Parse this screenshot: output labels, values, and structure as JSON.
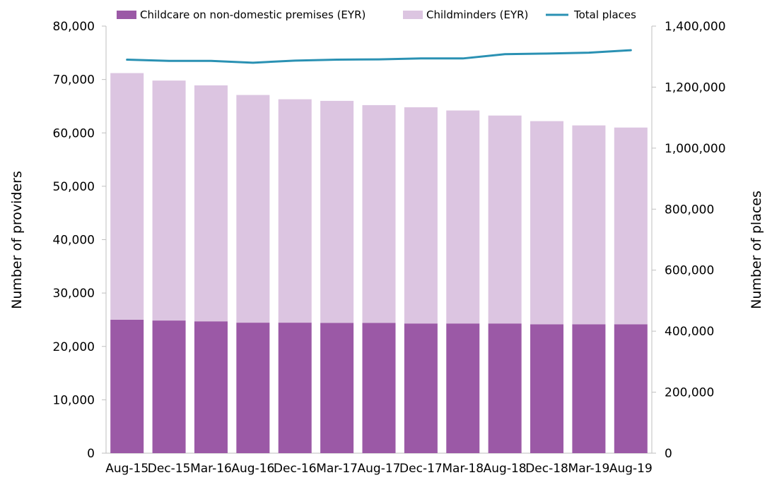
{
  "chart_data": {
    "type": "bar",
    "stacked": true,
    "categories": [
      "Aug-15",
      "Dec-15",
      "Mar-16",
      "Aug-16",
      "Dec-16",
      "Mar-17",
      "Aug-17",
      "Dec-17",
      "Mar-18",
      "Aug-18",
      "Dec-18",
      "Mar-19",
      "Aug-19"
    ],
    "series": [
      {
        "name": "Childcare on non-domestic premises (EYR)",
        "type": "bar",
        "axis": "left",
        "color": "#9b59a6",
        "values": [
          25000,
          24850,
          24700,
          24450,
          24450,
          24400,
          24400,
          24300,
          24300,
          24300,
          24150,
          24150,
          24150
        ]
      },
      {
        "name": "Childminders (EYR)",
        "type": "bar",
        "axis": "left",
        "color": "#dcc5e1",
        "values": [
          46200,
          44950,
          44200,
          42650,
          41850,
          41600,
          40800,
          40500,
          39900,
          38950,
          38050,
          37250,
          36850
        ]
      },
      {
        "name": "Total places",
        "type": "line",
        "axis": "right",
        "color": "#2a91b3",
        "values": [
          1290000,
          1286000,
          1286000,
          1280000,
          1287000,
          1290000,
          1291000,
          1294000,
          1294000,
          1308000,
          1310000,
          1313000,
          1321000
        ]
      }
    ],
    "ylabel": "Number of providers",
    "y2label": "Number of places",
    "ylim": [
      0,
      80000
    ],
    "y2lim": [
      0,
      1400000
    ],
    "yticks": [
      "0",
      "10,000",
      "20,000",
      "30,000",
      "40,000",
      "50,000",
      "60,000",
      "70,000",
      "80,000"
    ],
    "y2ticks": [
      "0",
      "200,000",
      "400,000",
      "600,000",
      "800,000",
      "1,000,000",
      "1,200,000",
      "1,400,000"
    ],
    "grid": false,
    "legend_position": "top"
  }
}
